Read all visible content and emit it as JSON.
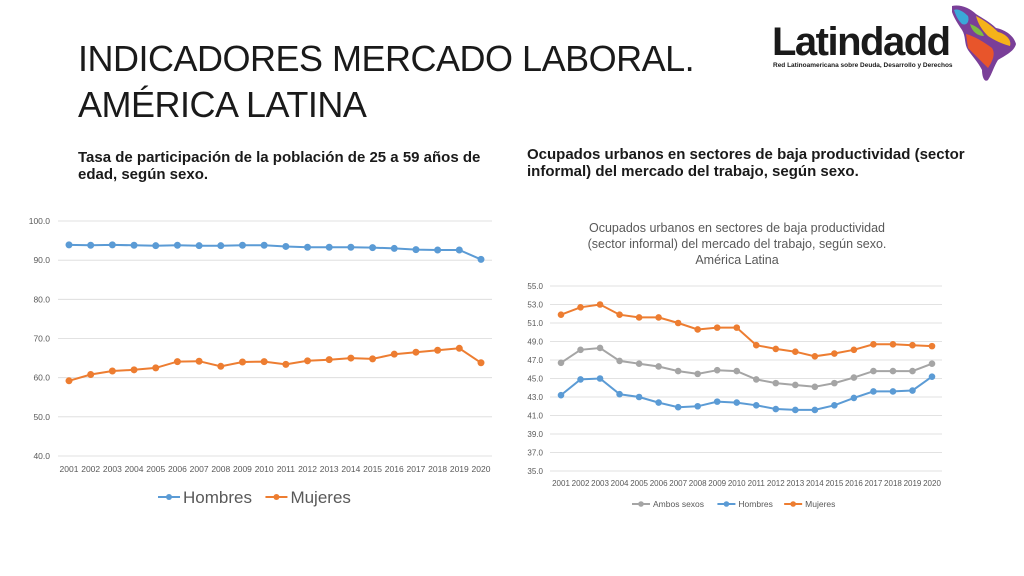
{
  "page": {
    "title_line1": "INDICADORES MERCADO LABORAL.",
    "title_line2": "AMÉRICA LATINA",
    "subtitle_left": "Tasa de participación de la población de 25 a 59 años de edad, según sexo.",
    "subtitle_right": "Ocupados urbanos en sectores de baja productividad (sector informal) del mercado del trabajo, según sexo.",
    "logo_text": "Latindadd",
    "logo_tagline": "Red Latinoamericana sobre Deuda, Desarrollo y Derechos"
  },
  "chart_data": [
    {
      "type": "line",
      "title": "",
      "categories": [
        "2001",
        "2002",
        "2003",
        "2004",
        "2005",
        "2006",
        "2007",
        "2008",
        "2009",
        "2010",
        "2011",
        "2012",
        "2013",
        "2014",
        "2015",
        "2016",
        "2017",
        "2018",
        "2019",
        "2020"
      ],
      "series": [
        {
          "name": "Hombres",
          "color": "#5b9bd5",
          "values": [
            93.9,
            93.8,
            93.9,
            93.8,
            93.7,
            93.8,
            93.7,
            93.7,
            93.8,
            93.8,
            93.5,
            93.3,
            93.3,
            93.3,
            93.2,
            93.0,
            92.7,
            92.6,
            92.6,
            90.2
          ]
        },
        {
          "name": "Mujeres",
          "color": "#ed7d31",
          "values": [
            59.2,
            60.8,
            61.7,
            62.0,
            62.5,
            64.1,
            64.2,
            62.9,
            64.0,
            64.1,
            63.4,
            64.3,
            64.6,
            65.0,
            64.8,
            66.0,
            66.5,
            67.0,
            67.5,
            63.8
          ]
        }
      ],
      "ylim": [
        40,
        100
      ],
      "yticks": [
        "40.0",
        "50.0",
        "60.0",
        "70.0",
        "80.0",
        "90.0",
        "100.0"
      ],
      "grid": true,
      "legend": "bottom"
    },
    {
      "type": "line",
      "title": "Ocupados urbanos en sectores de baja productividad (sector informal) del mercado del trabajo, según sexo. América Latina",
      "title_lines": [
        "Ocupados urbanos en sectores de baja productividad",
        "(sector informal) del mercado del trabajo, según sexo.",
        "América Latina"
      ],
      "categories": [
        "2001",
        "2002",
        "2003",
        "2004",
        "2005",
        "2006",
        "2007",
        "2008",
        "2009",
        "2010",
        "2011",
        "2012",
        "2013",
        "2014",
        "2015",
        "2016",
        "2017",
        "2018",
        "2019",
        "2020"
      ],
      "series": [
        {
          "name": "Ambos sexos",
          "color": "#a5a5a5",
          "values": [
            46.7,
            48.1,
            48.3,
            46.9,
            46.6,
            46.3,
            45.8,
            45.5,
            45.9,
            45.8,
            44.9,
            44.5,
            44.3,
            44.1,
            44.5,
            45.1,
            45.8,
            45.8,
            45.8,
            46.6
          ]
        },
        {
          "name": "Hombres",
          "color": "#5b9bd5",
          "values": [
            43.2,
            44.9,
            45.0,
            43.3,
            43.0,
            42.4,
            41.9,
            42.0,
            42.5,
            42.4,
            42.1,
            41.7,
            41.6,
            41.6,
            42.1,
            42.9,
            43.6,
            43.6,
            43.7,
            45.2
          ]
        },
        {
          "name": "Mujeres",
          "color": "#ed7d31",
          "values": [
            51.9,
            52.7,
            53.0,
            51.9,
            51.6,
            51.6,
            51.0,
            50.3,
            50.5,
            50.5,
            48.6,
            48.2,
            47.9,
            47.4,
            47.7,
            48.1,
            48.7,
            48.7,
            48.6,
            48.5
          ]
        }
      ],
      "ylim": [
        35,
        55
      ],
      "yticks": [
        "35.0",
        "37.0",
        "39.0",
        "41.0",
        "43.0",
        "45.0",
        "47.0",
        "49.0",
        "51.0",
        "53.0",
        "55.0"
      ],
      "grid": true,
      "legend": "bottom"
    }
  ]
}
